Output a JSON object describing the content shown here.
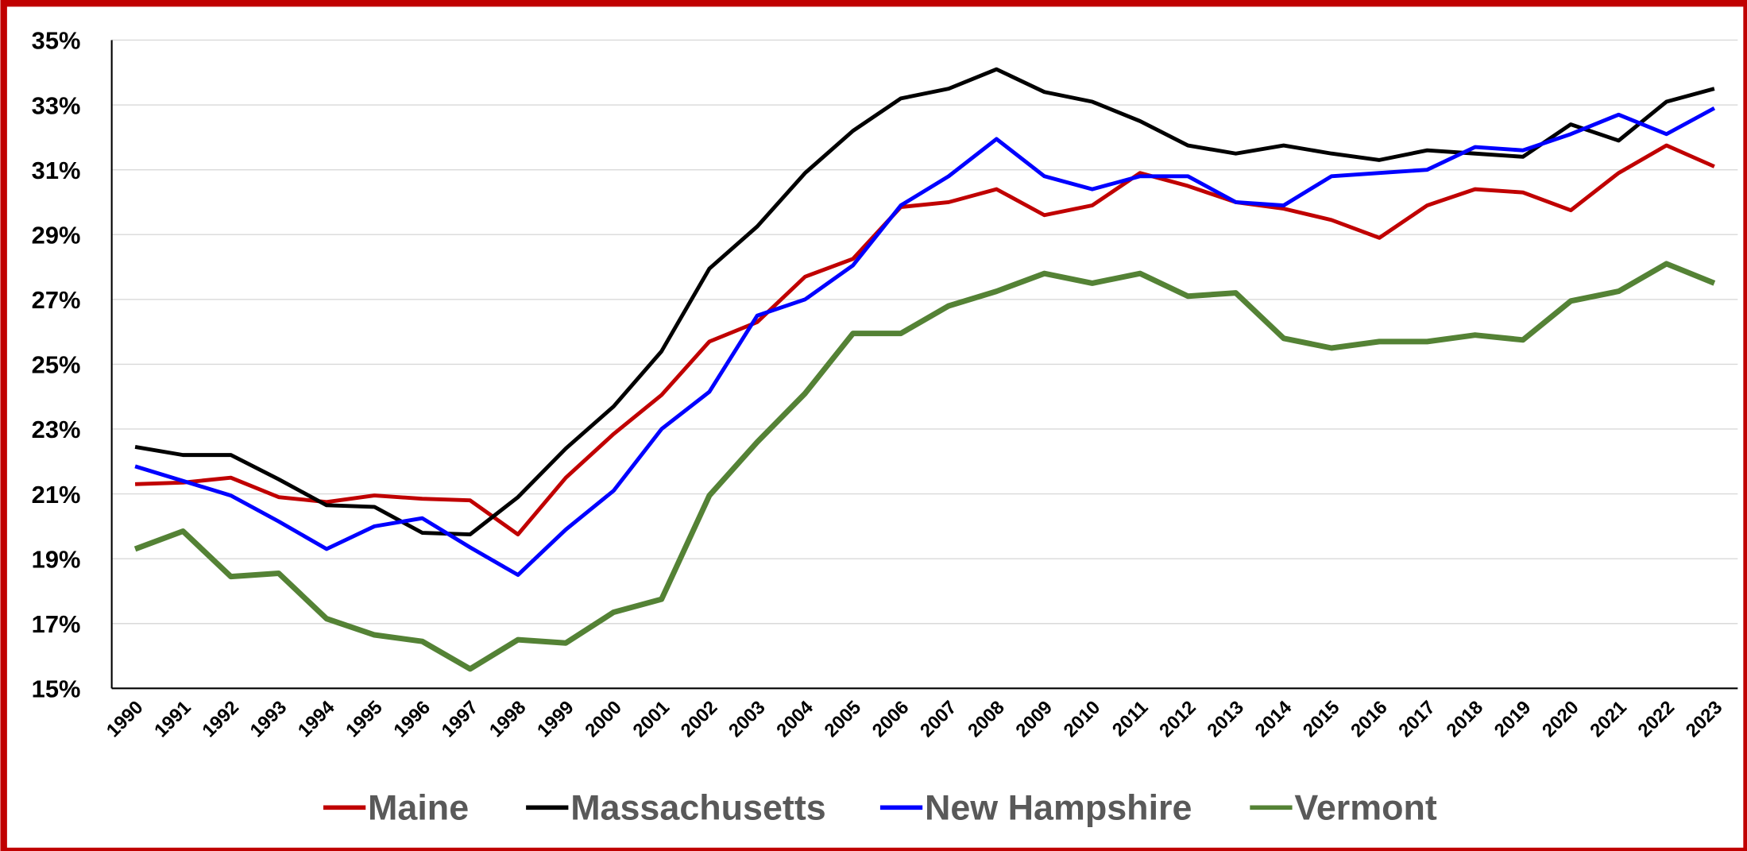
{
  "chart_data": {
    "type": "line",
    "categories": [
      "1990",
      "1991",
      "1992",
      "1993",
      "1994",
      "1995",
      "1996",
      "1997",
      "1998",
      "1999",
      "2000",
      "2001",
      "2002",
      "2003",
      "2004",
      "2005",
      "2006",
      "2007",
      "2008",
      "2009",
      "2010",
      "2011",
      "2012",
      "2013",
      "2014",
      "2015",
      "2016",
      "2017",
      "2018",
      "2019",
      "2020",
      "2021",
      "2022",
      "2023"
    ],
    "series": [
      {
        "name": "Maine",
        "color": "#c00000",
        "values": [
          21.3,
          21.35,
          21.5,
          20.9,
          20.75,
          20.95,
          20.85,
          20.8,
          19.75,
          21.5,
          22.85,
          24.05,
          25.7,
          26.3,
          27.7,
          28.25,
          29.85,
          30.0,
          30.4,
          29.6,
          29.9,
          30.9,
          30.5,
          30.0,
          29.8,
          29.45,
          28.9,
          29.9,
          30.4,
          30.3,
          29.75,
          30.9,
          31.75,
          31.1
        ]
      },
      {
        "name": "Massachusetts",
        "color": "#000000",
        "values": [
          22.45,
          22.2,
          22.2,
          21.45,
          20.65,
          20.6,
          19.8,
          19.75,
          20.9,
          22.4,
          23.7,
          25.4,
          27.95,
          29.25,
          30.9,
          32.2,
          33.2,
          33.5,
          34.1,
          33.4,
          33.1,
          32.5,
          31.75,
          31.5,
          31.75,
          31.5,
          31.3,
          31.6,
          31.5,
          31.4,
          32.4,
          31.9,
          33.1,
          33.5
        ]
      },
      {
        "name": "New Hampshire",
        "color": "#0000ff",
        "values": [
          21.85,
          21.4,
          20.95,
          20.15,
          19.3,
          20.0,
          20.25,
          19.35,
          18.5,
          19.9,
          21.1,
          23.0,
          24.15,
          26.5,
          27.0,
          28.05,
          29.9,
          30.8,
          31.95,
          30.8,
          30.4,
          30.8,
          30.8,
          30.0,
          29.9,
          30.8,
          30.9,
          31.0,
          31.7,
          31.6,
          32.1,
          32.7,
          32.1,
          32.9
        ]
      },
      {
        "name": "Vermont",
        "color": "#548235",
        "values": [
          19.3,
          19.85,
          18.45,
          18.55,
          17.15,
          16.65,
          16.45,
          15.6,
          16.5,
          16.4,
          17.35,
          17.75,
          20.95,
          22.6,
          24.1,
          25.95,
          25.95,
          26.8,
          27.25,
          27.8,
          27.5,
          27.8,
          27.1,
          27.2,
          25.8,
          25.5,
          25.7,
          25.7,
          25.9,
          25.75,
          26.95,
          27.25,
          28.1,
          27.5
        ]
      }
    ],
    "ylim": [
      15,
      35
    ],
    "yticks": [
      {
        "value": 15,
        "label": "15%"
      },
      {
        "value": 17,
        "label": "17%"
      },
      {
        "value": 19,
        "label": "19%"
      },
      {
        "value": 21,
        "label": "21%"
      },
      {
        "value": 23,
        "label": "23%"
      },
      {
        "value": 25,
        "label": "25%"
      },
      {
        "value": 27,
        "label": "27%"
      },
      {
        "value": 29,
        "label": "29%"
      },
      {
        "value": 31,
        "label": "31%"
      },
      {
        "value": 33,
        "label": "33%"
      },
      {
        "value": 35,
        "label": "35%"
      }
    ],
    "grid": true,
    "legend": "bottom"
  }
}
